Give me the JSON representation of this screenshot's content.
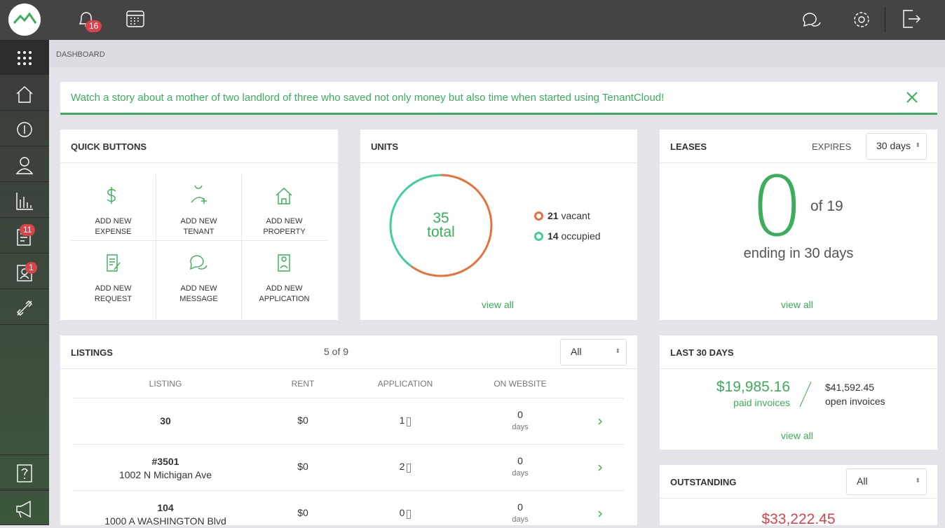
{
  "topbar": {
    "notifications": 16
  },
  "sidebar": {
    "badge_leases": 11,
    "badge_tenants": 1
  },
  "breadcrumb": "DASHBOARD",
  "banner": "Watch a story about a mother of two landlord of three who saved not only money but also time when started using TenantCloud!",
  "quick_buttons": {
    "title": "QUICK BUTTONS",
    "buttons": [
      [
        "ADD NEW",
        "EXPENSE"
      ],
      [
        "ADD NEW",
        "TENANT"
      ],
      [
        "ADD NEW",
        "PROPERTY"
      ],
      [
        "ADD NEW",
        "REQUEST"
      ],
      [
        "ADD NEW",
        "MESSAGE"
      ],
      [
        "ADD NEW",
        "APPLICATION"
      ]
    ]
  },
  "units": {
    "title": "UNITS",
    "total": 35,
    "total_label": "total",
    "vacant": 21,
    "vacant_label": "vacant",
    "vacant_color": "#e8703a",
    "occupied": 14,
    "occupied_label": "occupied",
    "occupied_color": "#3ecf9a",
    "link": "view all"
  },
  "leases": {
    "title": "LEASES",
    "expires_label": "EXPIRES",
    "expires_select": "30 days",
    "count": 0,
    "of_text": "of",
    "of_total": 19,
    "ending": "ending in 30 days",
    "link": "view all"
  },
  "listings": {
    "title": "LISTINGS",
    "count_label": "5 of 9",
    "filter": "All",
    "columns": [
      "LISTING",
      "RENT",
      "APPLICATION",
      "ON WEBSITE"
    ],
    "days_label": "days",
    "rows": [
      {
        "name": "30",
        "rent": "$0",
        "applications": 1,
        "days": 0
      },
      {
        "name": "#3501",
        "address": "1002 N Michigan Ave",
        "rent": "$0",
        "applications": 2,
        "days": 0
      },
      {
        "name": "104",
        "address": "1000 A WASHINGTON Blvd",
        "rent": "$0",
        "applications": 0,
        "days": 0
      }
    ]
  },
  "last_30_days": {
    "title": "LAST 30 DAYS",
    "paid": "$19,985.16",
    "paid_label": "paid invoices",
    "open": "$41,592.45",
    "open_label": "open invoices",
    "link": "view all"
  },
  "outstanding": {
    "title": "OUTSTANDING",
    "filter": "All",
    "amount": "$33,222.45"
  }
}
